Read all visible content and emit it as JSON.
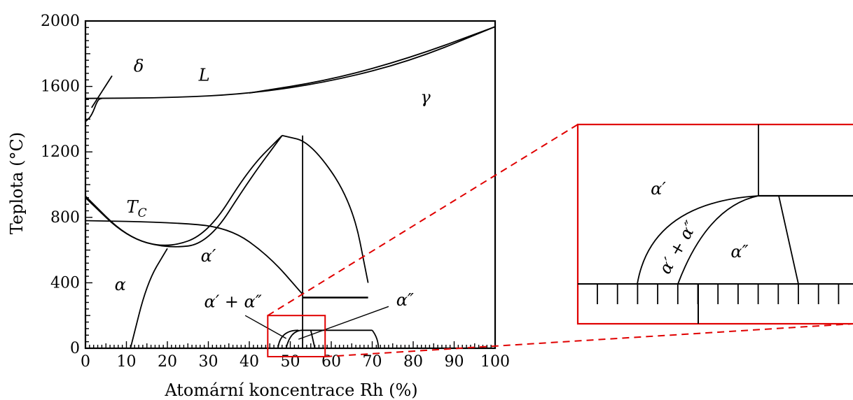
{
  "chart_data": {
    "type": "phase-diagram",
    "title": "",
    "xlabel": "Atomární koncentrace Rh (%)",
    "ylabel": "Teplota (°C)",
    "xlim": [
      0,
      100
    ],
    "ylim": [
      0,
      2000
    ],
    "x_ticks": [
      "0",
      "10",
      "20",
      "30",
      "40",
      "50",
      "60",
      "70",
      "80",
      "90",
      "100"
    ],
    "y_ticks": [
      "0",
      "400",
      "800",
      "1200",
      "1600",
      "2000"
    ],
    "regions": [
      {
        "label": "δ",
        "x": 13,
        "y": 1690
      },
      {
        "label": "L",
        "x": 29,
        "y": 1635
      },
      {
        "label": "γ",
        "x": 83,
        "y": 1500
      },
      {
        "label": "T",
        "sub": "C",
        "x": 12.5,
        "y": 830
      },
      {
        "label": "α′",
        "x": 30,
        "y": 530
      },
      {
        "label": "α",
        "x": 8.5,
        "y": 355
      },
      {
        "label": "α′ + α″",
        "x": 36,
        "y": 250
      },
      {
        "label": "α″",
        "x": 78,
        "y": 260
      }
    ],
    "boundaries": {
      "delta_left": [
        [
          1.5,
          1470
        ],
        [
          6.5,
          1665
        ]
      ],
      "delta_loop": [
        [
          0,
          1385
        ],
        [
          1.5,
          1420
        ],
        [
          3,
          1520
        ],
        [
          4,
          1527
        ]
      ],
      "solidus_liquidus": [
        [
          0,
          1527
        ],
        [
          20,
          1530
        ],
        [
          40,
          1555
        ],
        [
          60,
          1630
        ],
        [
          80,
          1760
        ],
        [
          100,
          1965
        ]
      ],
      "liquidus_upper": [
        [
          40,
          1560
        ],
        [
          60,
          1640
        ],
        [
          80,
          1780
        ],
        [
          100,
          1965
        ]
      ],
      "alpha_upper": [
        [
          0,
          930
        ],
        [
          10,
          680
        ],
        [
          20,
          610
        ],
        [
          30,
          700
        ],
        [
          40,
          1100
        ],
        [
          48,
          1300
        ]
      ],
      "alpha_lower": [
        [
          0,
          920
        ],
        [
          10,
          680
        ],
        [
          20,
          610
        ],
        [
          30,
          640
        ],
        [
          40,
          1030
        ],
        [
          48,
          1300
        ]
      ],
      "alpha_alpha2": [
        [
          48,
          1300
        ],
        [
          55,
          1260
        ],
        [
          65,
          900
        ],
        [
          69,
          400
        ]
      ],
      "Tc": [
        [
          0,
          780
        ],
        [
          20,
          770
        ],
        [
          35,
          740
        ],
        [
          45,
          560
        ],
        [
          53,
          330
        ]
      ],
      "alpha_beta_left": [
        [
          11,
          0
        ],
        [
          15,
          400
        ],
        [
          20,
          610
        ]
      ],
      "vertical_53": [
        [
          53,
          1300
        ],
        [
          53,
          0
        ]
      ],
      "hline_300": [
        [
          53,
          310
        ],
        [
          69,
          310
        ]
      ],
      "hline_110": [
        [
          53,
          110
        ],
        [
          70,
          110
        ]
      ]
    },
    "inset": {
      "source_box_x": [
        44.5,
        58.5
      ],
      "source_box_y": [
        0,
        200
      ],
      "regions": [
        "α′",
        "α′ + α″",
        "α″"
      ]
    }
  },
  "colors": {
    "axes": "#000000",
    "highlight": "#e00000",
    "background": "#ffffff"
  }
}
